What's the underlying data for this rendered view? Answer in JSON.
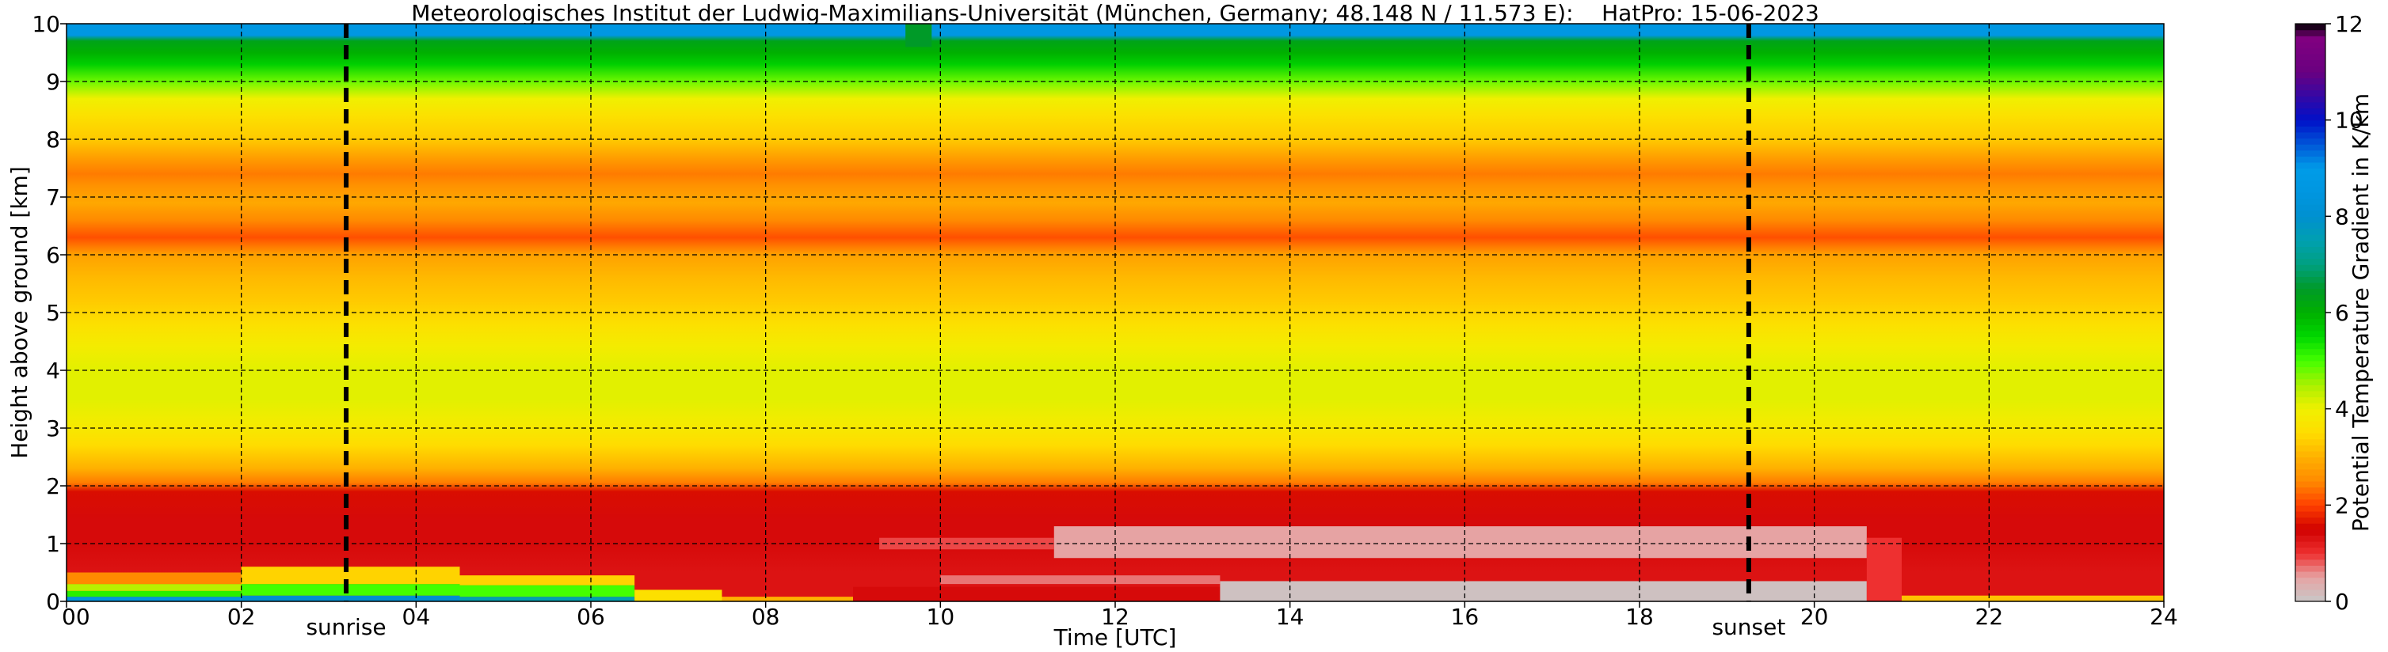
{
  "chart_data": {
    "type": "heatmap",
    "title": "Meteorologisches Institut der Ludwig-Maximilians-Universität (München, Germany; 48.148 N / 11.573 E):    HatPro: 15-06-2023",
    "xlabel": "Time [UTC]",
    "ylabel": "Height above ground [km]",
    "xlim": [
      0,
      24
    ],
    "ylim": [
      0,
      10
    ],
    "x_ticks": [
      0,
      2,
      4,
      6,
      8,
      10,
      12,
      14,
      16,
      18,
      20,
      22,
      24
    ],
    "x_tick_labels": [
      "00",
      "02",
      "04",
      "06",
      "08",
      "10",
      "12",
      "14",
      "16",
      "18",
      "20",
      "22",
      "24"
    ],
    "y_ticks": [
      0,
      1,
      2,
      3,
      4,
      5,
      6,
      7,
      8,
      9,
      10
    ],
    "y_tick_labels": [
      "0",
      "1",
      "2",
      "3",
      "4",
      "5",
      "6",
      "7",
      "8",
      "9",
      "10"
    ],
    "grid": true,
    "annotations": [
      {
        "label": "sunrise",
        "x": 3.2
      },
      {
        "label": "sunset",
        "x": 19.25
      }
    ],
    "colorbar": {
      "label": "Potential Temperature Gradient in K/km",
      "range": [
        0,
        12
      ],
      "ticks": [
        0,
        2,
        4,
        6,
        8,
        10,
        12
      ],
      "tick_labels": [
        "0",
        "2",
        "4",
        "6",
        "8",
        "10",
        "12"
      ],
      "stops": [
        {
          "v": 0.0,
          "c": "#c8c8c8"
        },
        {
          "v": 0.5,
          "c": "#e6a3a3"
        },
        {
          "v": 1.0,
          "c": "#ee3030"
        },
        {
          "v": 1.5,
          "c": "#d00000"
        },
        {
          "v": 2.0,
          "c": "#ff4000"
        },
        {
          "v": 2.5,
          "c": "#ff8a00"
        },
        {
          "v": 3.0,
          "c": "#ffb000"
        },
        {
          "v": 3.5,
          "c": "#ffdc00"
        },
        {
          "v": 4.0,
          "c": "#f0f000"
        },
        {
          "v": 4.5,
          "c": "#aaf000"
        },
        {
          "v": 5.0,
          "c": "#44ff00"
        },
        {
          "v": 5.5,
          "c": "#00d800"
        },
        {
          "v": 6.0,
          "c": "#00b000"
        },
        {
          "v": 6.5,
          "c": "#009a28"
        },
        {
          "v": 7.0,
          "c": "#00a080"
        },
        {
          "v": 7.5,
          "c": "#00a0b0"
        },
        {
          "v": 8.0,
          "c": "#0090d0"
        },
        {
          "v": 8.5,
          "c": "#0096e0"
        },
        {
          "v": 9.0,
          "c": "#009ce8"
        },
        {
          "v": 10.0,
          "c": "#0010c8"
        },
        {
          "v": 11.0,
          "c": "#6a0080"
        },
        {
          "v": 11.7,
          "c": "#800080"
        },
        {
          "v": 12.0,
          "c": "#000000"
        }
      ]
    },
    "profile": [
      {
        "h": 10.0,
        "v": 8.6
      },
      {
        "h": 9.8,
        "v": 8.6
      },
      {
        "h": 9.7,
        "v": 6.3
      },
      {
        "h": 9.5,
        "v": 6.0
      },
      {
        "h": 9.3,
        "v": 5.6
      },
      {
        "h": 9.0,
        "v": 4.8
      },
      {
        "h": 8.7,
        "v": 4.0
      },
      {
        "h": 8.4,
        "v": 3.6
      },
      {
        "h": 8.0,
        "v": 3.3
      },
      {
        "h": 7.7,
        "v": 2.8
      },
      {
        "h": 7.4,
        "v": 2.4
      },
      {
        "h": 7.2,
        "v": 2.6
      },
      {
        "h": 6.9,
        "v": 2.9
      },
      {
        "h": 6.6,
        "v": 2.5
      },
      {
        "h": 6.3,
        "v": 2.1
      },
      {
        "h": 6.0,
        "v": 2.8
      },
      {
        "h": 5.6,
        "v": 3.1
      },
      {
        "h": 5.2,
        "v": 3.3
      },
      {
        "h": 4.8,
        "v": 3.6
      },
      {
        "h": 4.4,
        "v": 3.9
      },
      {
        "h": 4.0,
        "v": 4.1
      },
      {
        "h": 3.5,
        "v": 4.1
      },
      {
        "h": 3.1,
        "v": 3.9
      },
      {
        "h": 2.7,
        "v": 3.5
      },
      {
        "h": 2.3,
        "v": 3.0
      },
      {
        "h": 2.05,
        "v": 2.4
      },
      {
        "h": 1.9,
        "v": 1.6
      },
      {
        "h": 1.4,
        "v": 1.4
      },
      {
        "h": 1.0,
        "v": 1.4
      },
      {
        "h": 0.5,
        "v": 1.3
      },
      {
        "h": 0.0,
        "v": 1.3
      }
    ],
    "regions": [
      {
        "t0": 0.0,
        "t1": 2.0,
        "h0": 0.0,
        "h1": 0.08,
        "v": 8.5
      },
      {
        "t0": 0.0,
        "t1": 2.0,
        "h0": 0.08,
        "h1": 0.18,
        "v": 5.2
      },
      {
        "t0": 0.0,
        "t1": 2.0,
        "h0": 0.18,
        "h1": 0.3,
        "v": 4.4
      },
      {
        "t0": 0.0,
        "t1": 2.0,
        "h0": 0.3,
        "h1": 0.5,
        "v": 2.5
      },
      {
        "t0": 2.0,
        "t1": 4.5,
        "h0": 0.0,
        "h1": 0.1,
        "v": 8.0
      },
      {
        "t0": 2.0,
        "t1": 4.5,
        "h0": 0.1,
        "h1": 0.3,
        "v": 5.0
      },
      {
        "t0": 2.0,
        "t1": 4.5,
        "h0": 0.3,
        "h1": 0.6,
        "v": 3.4
      },
      {
        "t0": 4.5,
        "t1": 6.5,
        "h0": 0.0,
        "h1": 0.08,
        "v": 7.5
      },
      {
        "t0": 4.5,
        "t1": 6.5,
        "h0": 0.08,
        "h1": 0.28,
        "v": 5.0
      },
      {
        "t0": 4.5,
        "t1": 6.5,
        "h0": 0.28,
        "h1": 0.45,
        "v": 3.4
      },
      {
        "t0": 6.5,
        "t1": 7.5,
        "h0": 0.0,
        "h1": 0.2,
        "v": 3.6
      },
      {
        "t0": 7.5,
        "t1": 9.0,
        "h0": 0.0,
        "h1": 0.08,
        "v": 3.0
      },
      {
        "t0": 9.0,
        "t1": 13.2,
        "h0": 0.0,
        "h1": 0.25,
        "v": 1.4
      },
      {
        "t0": 13.2,
        "t1": 20.6,
        "h0": 0.0,
        "h1": 0.35,
        "v": 0.1
      },
      {
        "t0": 10.0,
        "t1": 13.2,
        "h0": 0.3,
        "h1": 0.45,
        "v": 0.7
      },
      {
        "t0": 11.3,
        "t1": 20.6,
        "h0": 0.75,
        "h1": 1.3,
        "v": 0.5
      },
      {
        "t0": 9.3,
        "t1": 11.3,
        "h0": 0.9,
        "h1": 1.1,
        "v": 0.9
      },
      {
        "t0": 20.6,
        "t1": 21.0,
        "h0": 0.0,
        "h1": 1.1,
        "v": 1.0
      },
      {
        "t0": 21.0,
        "t1": 24.0,
        "h0": 0.0,
        "h1": 0.1,
        "v": 3.2
      },
      {
        "t0": 9.6,
        "t1": 9.9,
        "h0": 9.6,
        "h1": 10.0,
        "v": 6.5
      }
    ]
  }
}
